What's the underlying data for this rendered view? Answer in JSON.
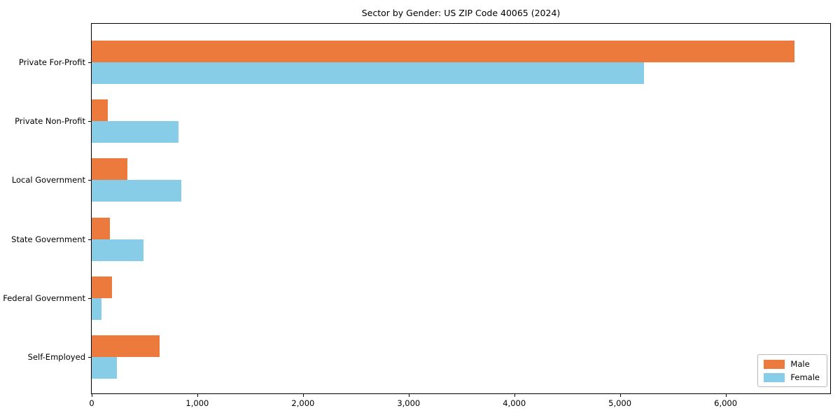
{
  "figure": {
    "background": "#ffffff",
    "axis_color": "#000000"
  },
  "chart_data": {
    "type": "bar",
    "orientation": "horizontal",
    "title": "Sector by Gender: US ZIP Code 40065 (2024)",
    "xlabel": "",
    "ylabel": "",
    "categories": [
      "Private For-Profit",
      "Private Non-Profit",
      "Local Government",
      "State Government",
      "Federal Government",
      "Self-Employed"
    ],
    "series": [
      {
        "name": "Male",
        "color": "#ec7a3c",
        "values": [
          6650,
          150,
          340,
          170,
          190,
          640
        ]
      },
      {
        "name": "Female",
        "color": "#87cde8",
        "values": [
          5230,
          820,
          850,
          490,
          90,
          240
        ]
      }
    ],
    "xlim": [
      0,
      6990
    ],
    "x_ticks": {
      "values": [
        0,
        1000,
        2000,
        3000,
        4000,
        5000,
        6000
      ],
      "labels": [
        "0",
        "1,000",
        "2,000",
        "3,000",
        "4,000",
        "5,000",
        "6,000"
      ]
    },
    "grid": false,
    "legend_position": "lower right"
  }
}
